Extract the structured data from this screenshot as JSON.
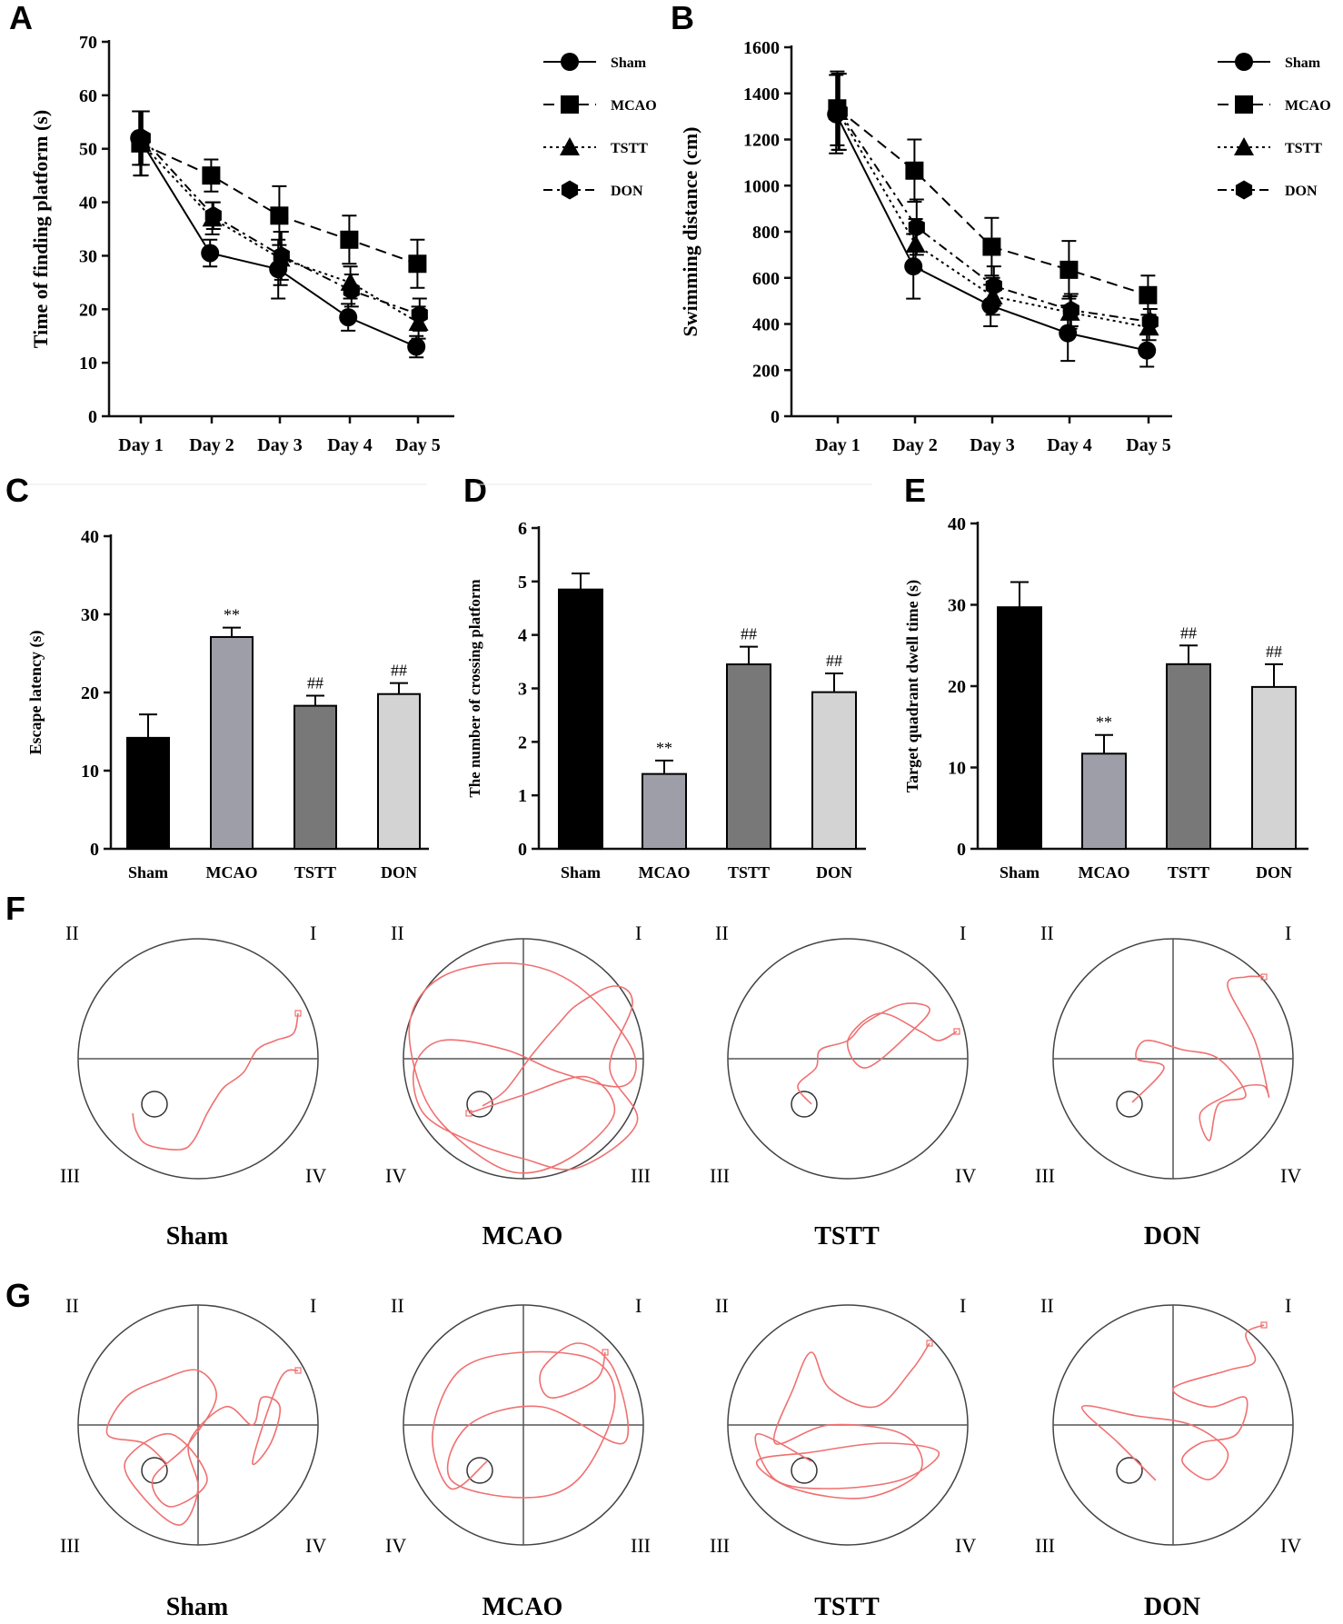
{
  "panel_letters": {
    "A": "A",
    "B": "B",
    "C": "C",
    "D": "D",
    "E": "E",
    "F": "F",
    "G": "G"
  },
  "colors": {
    "sham": "#000000",
    "mcao": "#9d9ea8",
    "tstt": "#787878",
    "don": "#d3d3d3",
    "track": "#f07070",
    "axis": "#111111"
  },
  "chart_data": [
    {
      "id": "A",
      "type": "line",
      "categories": [
        "Day 1",
        "Day 2",
        "Day 3",
        "Day 4",
        "Day 5"
      ],
      "ylabel": "Time of finding platform (s)",
      "xlabel": "",
      "ylim": [
        0,
        70
      ],
      "yticks": [
        0,
        10,
        20,
        30,
        40,
        50,
        60,
        70
      ],
      "series": [
        {
          "name": "Sham",
          "marker": "circle",
          "dash": "solid",
          "values": [
            52,
            30.5,
            27.5,
            18.5,
            13
          ],
          "errors": [
            5,
            2.5,
            5.5,
            2.5,
            2
          ]
        },
        {
          "name": "MCAO",
          "marker": "square",
          "dash": "dash",
          "values": [
            51,
            45,
            37.5,
            33,
            28.5
          ],
          "errors": [
            6,
            3,
            5.5,
            4.5,
            4.5
          ]
        },
        {
          "name": "TSTT",
          "marker": "triangle",
          "dash": "dot",
          "values": [
            51,
            37,
            29.5,
            25,
            17.5
          ],
          "errors": [
            6,
            3,
            5,
            3,
            3
          ]
        },
        {
          "name": "DON",
          "marker": "hexagon",
          "dash": "dashdot",
          "values": [
            52,
            37.5,
            30,
            23.5,
            19
          ],
          "errors": [
            5,
            2.5,
            4.5,
            3,
            3
          ]
        }
      ]
    },
    {
      "id": "B",
      "type": "line",
      "categories": [
        "Day 1",
        "Day 2",
        "Day 3",
        "Day 4",
        "Day 5"
      ],
      "ylabel": "Swimming distance (cm)",
      "xlabel": "",
      "ylim": [
        0,
        1600
      ],
      "yticks": [
        0,
        200,
        400,
        600,
        800,
        1000,
        1200,
        1400,
        1600
      ],
      "series": [
        {
          "name": "Sham",
          "marker": "circle",
          "dash": "solid",
          "values": [
            1310,
            650,
            480,
            360,
            285
          ],
          "errors": [
            170,
            140,
            90,
            120,
            70
          ]
        },
        {
          "name": "MCAO",
          "marker": "square",
          "dash": "dash",
          "values": [
            1335,
            1065,
            735,
            635,
            525
          ],
          "errors": [
            160,
            135,
            125,
            125,
            85
          ]
        },
        {
          "name": "TSTT",
          "marker": "triangle",
          "dash": "dot",
          "values": [
            1320,
            745,
            520,
            450,
            385
          ],
          "errors": [
            165,
            110,
            80,
            70,
            55
          ]
        },
        {
          "name": "DON",
          "marker": "hexagon",
          "dash": "dashdot",
          "values": [
            1320,
            820,
            565,
            460,
            410
          ],
          "errors": [
            165,
            120,
            85,
            70,
            55
          ]
        }
      ]
    },
    {
      "id": "C",
      "type": "bar",
      "categories": [
        "Sham",
        "MCAO",
        "TSTT",
        "DON"
      ],
      "values": [
        14.2,
        27.1,
        18.3,
        19.8
      ],
      "errors": [
        3.0,
        1.2,
        1.3,
        1.4
      ],
      "annotations": [
        "",
        "**",
        "##",
        "##"
      ],
      "ylabel": "Escape latency (s)",
      "xlabel": "",
      "ylim": [
        0,
        40
      ],
      "yticks": [
        0,
        10,
        20,
        30,
        40
      ]
    },
    {
      "id": "D",
      "type": "bar",
      "categories": [
        "Sham",
        "MCAO",
        "TSTT",
        "DON"
      ],
      "values": [
        4.85,
        1.4,
        3.45,
        2.93
      ],
      "errors": [
        0.3,
        0.25,
        0.33,
        0.35
      ],
      "annotations": [
        "",
        "**",
        "##",
        "##"
      ],
      "ylabel": "The number of crossing platform",
      "xlabel": "",
      "ylim": [
        0,
        6
      ],
      "yticks": [
        0,
        1,
        2,
        3,
        4,
        5,
        6
      ]
    },
    {
      "id": "E",
      "type": "bar",
      "categories": [
        "Sham",
        "MCAO",
        "TSTT",
        "DON"
      ],
      "values": [
        29.7,
        11.7,
        22.7,
        19.9
      ],
      "errors": [
        3.1,
        2.3,
        2.3,
        2.8
      ],
      "annotations": [
        "",
        "**",
        "##",
        "##"
      ],
      "ylabel": "Target quadrant dwell time (s)",
      "xlabel": "",
      "ylim": [
        0,
        40
      ],
      "yticks": [
        0,
        10,
        20,
        30,
        40
      ]
    }
  ],
  "tracks": {
    "F": {
      "labels": [
        "Sham",
        "MCAO",
        "TSTT",
        "DON"
      ],
      "quadrants": [
        [
          "II",
          "I",
          "III",
          "IV"
        ],
        [
          "II",
          "I",
          "IV",
          "III"
        ],
        [
          "II",
          "I",
          "III",
          "IV"
        ],
        [
          "II",
          "I",
          "III",
          "IV"
        ]
      ]
    },
    "G": {
      "labels": [
        "Sham",
        "MCAO",
        "TSTT",
        "DON"
      ],
      "quadrants": [
        [
          "II",
          "I",
          "III",
          "IV"
        ],
        [
          "II",
          "I",
          "IV",
          "III"
        ],
        [
          "II",
          "I",
          "III",
          "IV"
        ],
        [
          "II",
          "I",
          "III",
          "IV"
        ]
      ]
    }
  }
}
